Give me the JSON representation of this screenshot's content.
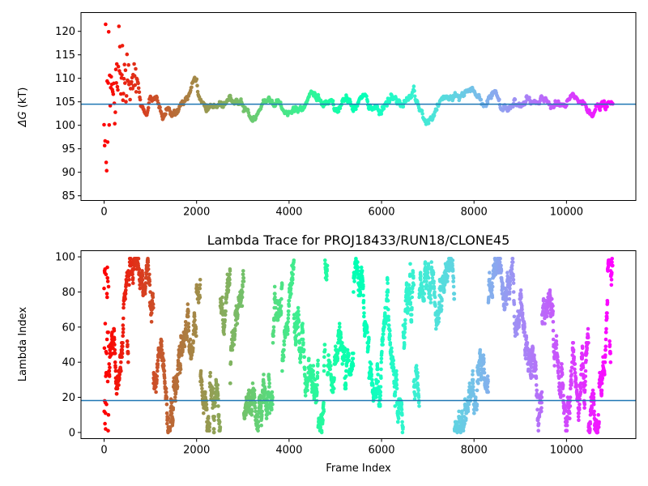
{
  "chart_data": [
    {
      "type": "scatter",
      "title": "",
      "xlabel": "",
      "ylabel": "ΔG (kT)",
      "ylabel_symbol": "ΔG",
      "ylabel_unit": " (kT)",
      "xlim": [
        -500,
        11500
      ],
      "ylim": [
        84,
        124
      ],
      "xticks": [
        0,
        2000,
        4000,
        6000,
        8000,
        10000
      ],
      "yticks": [
        85,
        90,
        95,
        100,
        105,
        110,
        115,
        120
      ],
      "hline": 104.5,
      "hline_color": "#1f77b4",
      "colormap": "rainbow",
      "color_by": "frame index (reversed: red at start, violet at end)",
      "grid": false,
      "trace_mean": [
        [
          0,
          104
        ],
        [
          100,
          106
        ],
        [
          200,
          107
        ],
        [
          300,
          108
        ],
        [
          400,
          109
        ],
        [
          500,
          110
        ],
        [
          600,
          108.5
        ],
        [
          700,
          110
        ],
        [
          800,
          104
        ],
        [
          900,
          103
        ],
        [
          1000,
          105
        ],
        [
          1100,
          106
        ],
        [
          1200,
          103
        ],
        [
          1300,
          102
        ],
        [
          1400,
          104
        ],
        [
          1500,
          102
        ],
        [
          1600,
          103
        ],
        [
          1700,
          105
        ],
        [
          1800,
          106
        ],
        [
          1900,
          108
        ],
        [
          2000,
          109
        ],
        [
          2100,
          104
        ],
        [
          2200,
          103
        ],
        [
          2400,
          104
        ],
        [
          2600,
          105
        ],
        [
          2800,
          106
        ],
        [
          3000,
          105
        ],
        [
          3200,
          102
        ],
        [
          3400,
          104
        ],
        [
          3600,
          106
        ],
        [
          3800,
          104
        ],
        [
          4000,
          103
        ],
        [
          4200,
          104
        ],
        [
          4400,
          106
        ],
        [
          4500,
          107.5
        ],
        [
          4700,
          105
        ],
        [
          4900,
          104
        ],
        [
          5000,
          102.5
        ],
        [
          5200,
          105
        ],
        [
          5400,
          104
        ],
        [
          5600,
          106
        ],
        [
          5800,
          103
        ],
        [
          6000,
          104
        ],
        [
          6200,
          106
        ],
        [
          6400,
          104
        ],
        [
          6600,
          106
        ],
        [
          6700,
          107
        ],
        [
          6900,
          101
        ],
        [
          7000,
          100
        ],
        [
          7200,
          104
        ],
        [
          7400,
          106
        ],
        [
          7600,
          105
        ],
        [
          7800,
          107
        ],
        [
          8000,
          107.5
        ],
        [
          8200,
          105
        ],
        [
          8400,
          106
        ],
        [
          8600,
          104
        ],
        [
          8800,
          105
        ],
        [
          9000,
          104
        ],
        [
          9200,
          105
        ],
        [
          9400,
          104
        ],
        [
          9600,
          105
        ],
        [
          9800,
          104
        ],
        [
          10000,
          104
        ],
        [
          10200,
          106
        ],
        [
          10400,
          104
        ],
        [
          10600,
          103.5
        ],
        [
          10800,
          104
        ],
        [
          11000,
          104
        ]
      ],
      "trace_spread": [
        [
          0,
          19
        ],
        [
          200,
          9
        ],
        [
          400,
          6
        ],
        [
          700,
          4
        ],
        [
          1000,
          3
        ],
        [
          2000,
          2.5
        ],
        [
          4000,
          2
        ],
        [
          7000,
          1.8
        ],
        [
          11000,
          1.2
        ]
      ]
    },
    {
      "type": "scatter",
      "title": "Lambda Trace for PROJ18433/RUN18/CLONE45",
      "xlabel": "Frame Index",
      "ylabel": "Lambda Index",
      "xlim": [
        -500,
        11500
      ],
      "ylim": [
        -3.5,
        103.5
      ],
      "xticks": [
        0,
        2000,
        4000,
        6000,
        8000,
        10000
      ],
      "yticks": [
        0,
        20,
        40,
        60,
        80,
        100
      ],
      "hline": 18.2,
      "hline_color": "#1f77b4",
      "colormap": "rainbow",
      "color_by": "frame index (reversed: red at start, violet at end)",
      "grid": false,
      "lambda_range": [
        0,
        99
      ]
    }
  ]
}
